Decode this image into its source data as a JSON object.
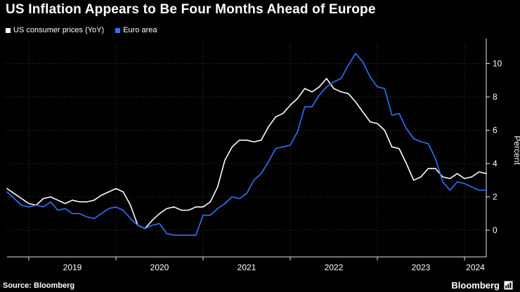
{
  "title": "US Inflation Appears to Be Four Months Ahead of Europe",
  "legend": [
    {
      "label": "US consumer prices (YoY)",
      "color": "#ffffff"
    },
    {
      "label": "Euro area",
      "color": "#3472f7"
    }
  ],
  "footer": {
    "source": "Source: Bloomberg",
    "brand": "Bloomberg"
  },
  "chart_data": {
    "type": "line",
    "title": "US Inflation Appears to Be Four Months Ahead of Europe",
    "ylabel": "Percent",
    "x_start": "2018-10",
    "x_end": "2024-04",
    "x_frequency": "monthly",
    "ylim": [
      -1.6,
      11.2
    ],
    "yticks": [
      0,
      2,
      4,
      6,
      8,
      10
    ],
    "grid": "dotted horizontal and vertical",
    "legend_position": "top-left",
    "grid_color": "#2e2e2e",
    "axis_color": "#e8e8e8",
    "xticks": [
      {
        "label": "2019",
        "tick_index": 3,
        "label_index": 9
      },
      {
        "label": "2020",
        "tick_index": 15,
        "label_index": 21
      },
      {
        "label": "2021",
        "tick_index": 27,
        "label_index": 33
      },
      {
        "label": "2022",
        "tick_index": 39,
        "label_index": 45
      },
      {
        "label": "2023",
        "tick_index": 51,
        "label_index": 57
      },
      {
        "label": "2024",
        "tick_index": 63,
        "label_index": 64.5
      }
    ],
    "series": [
      {
        "key": "us",
        "name": "US consumer prices (YoY)",
        "color": "#ffffff",
        "values": [
          2.5,
          2.2,
          1.9,
          1.6,
          1.5,
          1.9,
          2.0,
          1.8,
          1.6,
          1.8,
          1.7,
          1.7,
          1.8,
          2.1,
          2.3,
          2.5,
          2.3,
          1.5,
          0.3,
          0.1,
          0.6,
          1.0,
          1.3,
          1.4,
          1.2,
          1.2,
          1.4,
          1.4,
          1.7,
          2.6,
          4.2,
          5.0,
          5.4,
          5.4,
          5.3,
          5.4,
          6.2,
          6.8,
          7.0,
          7.5,
          7.9,
          8.5,
          8.3,
          8.6,
          9.1,
          8.5,
          8.3,
          8.2,
          7.7,
          7.1,
          6.5,
          6.4,
          6.0,
          5.0,
          4.9,
          4.0,
          3.0,
          3.2,
          3.7,
          3.7,
          3.2,
          3.1,
          3.4,
          3.1,
          3.2,
          3.5,
          3.4
        ]
      },
      {
        "key": "euro",
        "name": "Euro area",
        "color": "#3472f7",
        "values": [
          2.3,
          1.9,
          1.5,
          1.4,
          1.5,
          1.4,
          1.7,
          1.2,
          1.3,
          1.0,
          1.0,
          0.8,
          0.7,
          1.0,
          1.3,
          1.4,
          1.2,
          0.7,
          0.3,
          0.1,
          0.3,
          0.4,
          -0.2,
          -0.3,
          -0.3,
          -0.3,
          -0.3,
          0.9,
          0.9,
          1.3,
          1.6,
          2.0,
          1.9,
          2.2,
          3.0,
          3.4,
          4.1,
          4.9,
          5.0,
          5.1,
          5.9,
          7.4,
          7.4,
          8.1,
          8.6,
          8.9,
          9.1,
          9.9,
          10.6,
          10.1,
          9.2,
          8.6,
          8.5,
          6.9,
          7.0,
          6.1,
          5.5,
          5.3,
          5.2,
          4.3,
          2.9,
          2.4,
          2.9,
          2.8,
          2.6,
          2.4,
          2.4
        ]
      }
    ]
  }
}
